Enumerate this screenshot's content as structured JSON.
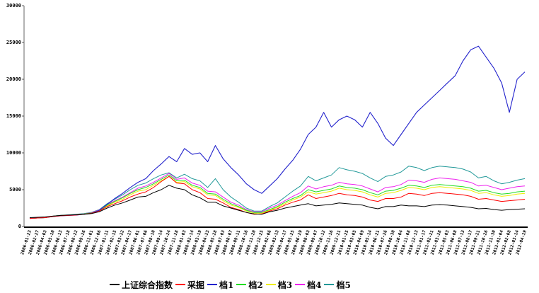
{
  "chart_data": {
    "type": "line",
    "title": "",
    "xlabel": "",
    "ylabel": "",
    "ylim": [
      0,
      30000
    ],
    "yticks": [
      "30000",
      "25000",
      "20000",
      "15000",
      "10000",
      "5000",
      "0"
    ],
    "ytick_values": [
      30000,
      25000,
      20000,
      15000,
      10000,
      5000,
      0
    ],
    "grid": false,
    "legend_placement": "bottom",
    "x": [
      "2006-01-23",
      "2006-02-27",
      "2006-04-03",
      "2006-05-10",
      "2006-06-13",
      "2006-07-18",
      "2006-08-22",
      "2006-09-26",
      "2006-11-01",
      "2006-12-06",
      "2007-01-11",
      "2007-02-15",
      "2007-03-22",
      "2007-04-27",
      "2007-06-01",
      "2007-07-06",
      "2007-08-10",
      "2007-09-14",
      "2007-10-24",
      "2007-11-28",
      "2008-01-03",
      "2008-02-14",
      "2008-03-19",
      "2008-04-23",
      "2008-05-28",
      "2008-07-03",
      "2008-08-07",
      "2008-09-11",
      "2008-10-16",
      "2008-11-20",
      "2008-12-25",
      "2009-02-06",
      "2009-03-13",
      "2009-04-17",
      "2009-05-25",
      "2009-06-29",
      "2009-08-03",
      "2009-09-07",
      "2009-10-12",
      "2009-11-16",
      "2009-12-21",
      "2010-01-25",
      "2010-03-05",
      "2010-04-09",
      "2010-05-14",
      "2010-06-21",
      "2010-07-26",
      "2010-08-30",
      "2010-10-04",
      "2010-11-08",
      "2010-12-13",
      "2011-01-17",
      "2011-02-21",
      "2011-03-28",
      "2011-05-03",
      "2011-06-08",
      "2011-07-13",
      "2011-08-17",
      "2011-09-21",
      "2011-10-26",
      "2011-11-30",
      "2012-01-04",
      "2012-02-08",
      "2012-03-14",
      "2012-04-19"
    ],
    "series": [
      {
        "name": "上证综合指数",
        "color": "#000000",
        "values": [
          1200,
          1250,
          1300,
          1400,
          1500,
          1550,
          1600,
          1650,
          1750,
          2000,
          2500,
          2900,
          3200,
          3600,
          4000,
          4100,
          4600,
          5000,
          5600,
          5200,
          5000,
          4300,
          3900,
          3300,
          3300,
          2800,
          2500,
          2200,
          1900,
          1700,
          1650,
          2000,
          2200,
          2500,
          2700,
          2900,
          3100,
          2800,
          2900,
          3000,
          3200,
          3100,
          3000,
          2900,
          2600,
          2400,
          2700,
          2700,
          2900,
          2800,
          2800,
          2700,
          2900,
          2950,
          2900,
          2800,
          2700,
          2600,
          2400,
          2450,
          2300,
          2200,
          2300,
          2350,
          2400
        ]
      },
      {
        "name": "采掘",
        "color": "#ff0000",
        "values": [
          1100,
          1150,
          1200,
          1350,
          1450,
          1500,
          1550,
          1650,
          1800,
          2100,
          2700,
          3100,
          3500,
          4000,
          4400,
          4700,
          5300,
          6100,
          6800,
          5900,
          5800,
          5000,
          4600,
          3800,
          3700,
          3200,
          2600,
          2300,
          1900,
          1650,
          1700,
          2100,
          2400,
          2900,
          3300,
          3600,
          4300,
          3800,
          4000,
          4200,
          4500,
          4300,
          4200,
          4000,
          3600,
          3400,
          3800,
          3800,
          4000,
          4500,
          4400,
          4200,
          4500,
          4600,
          4500,
          4400,
          4300,
          4100,
          3700,
          3800,
          3600,
          3400,
          3500,
          3600,
          3700
        ]
      },
      {
        "name": "档1",
        "color": "#2222cc",
        "values": [
          1100,
          1150,
          1200,
          1350,
          1450,
          1500,
          1550,
          1650,
          1800,
          2200,
          3000,
          3800,
          4500,
          5300,
          6000,
          6500,
          7600,
          8500,
          9500,
          8800,
          10600,
          9800,
          10000,
          8800,
          11000,
          9200,
          8000,
          7000,
          5800,
          5000,
          4500,
          5500,
          6500,
          7800,
          9000,
          10500,
          12500,
          13500,
          15500,
          13500,
          14500,
          15000,
          14500,
          13500,
          15500,
          14000,
          12000,
          11000,
          12500,
          14000,
          15500,
          16500,
          17500,
          18500,
          19500,
          20500,
          22500,
          24000,
          24500,
          23000,
          21500,
          19500,
          15500,
          20000,
          21000
        ]
      },
      {
        "name": "档2",
        "color": "#22dd22",
        "values": [
          1100,
          1150,
          1200,
          1400,
          1500,
          1550,
          1600,
          1700,
          1850,
          2200,
          2900,
          3400,
          3900,
          4500,
          5000,
          5300,
          5800,
          6400,
          7000,
          6200,
          6300,
          5600,
          5300,
          4500,
          4400,
          3700,
          3100,
          2700,
          2200,
          1900,
          1900,
          2300,
          2700,
          3300,
          3800,
          4200,
          5000,
          4700,
          4900,
          5100,
          5500,
          5300,
          5200,
          5000,
          4600,
          4300,
          4800,
          4900,
          5200,
          5600,
          5500,
          5300,
          5600,
          5700,
          5600,
          5500,
          5400,
          5200,
          4800,
          4900,
          4600,
          4400,
          4500,
          4700,
          4800
        ]
      },
      {
        "name": "档3",
        "color": "#eeee00",
        "values": [
          1100,
          1150,
          1200,
          1380,
          1480,
          1520,
          1580,
          1680,
          1820,
          2150,
          2800,
          3300,
          3700,
          4300,
          4800,
          5000,
          5600,
          6200,
          6800,
          6000,
          6100,
          5400,
          5100,
          4300,
          4200,
          3500,
          2900,
          2600,
          2100,
          1800,
          1800,
          2200,
          2600,
          3100,
          3600,
          4000,
          4700,
          4400,
          4600,
          4800,
          5200,
          5000,
          4900,
          4700,
          4300,
          4000,
          4500,
          4600,
          4900,
          5300,
          5200,
          5000,
          5300,
          5400,
          5300,
          5200,
          5100,
          4900,
          4500,
          4600,
          4300,
          4100,
          4200,
          4400,
          4500
        ]
      },
      {
        "name": "档4",
        "color": "#ee22ee",
        "values": [
          1100,
          1150,
          1200,
          1400,
          1500,
          1560,
          1620,
          1720,
          1880,
          2250,
          3000,
          3500,
          4000,
          4600,
          5200,
          5500,
          6000,
          6600,
          7200,
          6400,
          6600,
          5900,
          5600,
          4800,
          4700,
          4000,
          3300,
          2900,
          2300,
          2000,
          2000,
          2500,
          2900,
          3500,
          4100,
          4600,
          5500,
          5100,
          5400,
          5600,
          6000,
          5800,
          5700,
          5500,
          5100,
          4700,
          5300,
          5400,
          5700,
          6300,
          6200,
          6000,
          6400,
          6600,
          6500,
          6400,
          6200,
          6000,
          5500,
          5600,
          5300,
          5000,
          5200,
          5400,
          5500
        ]
      },
      {
        "name": "档5",
        "color": "#229999",
        "values": [
          1100,
          1150,
          1200,
          1400,
          1520,
          1580,
          1650,
          1750,
          1920,
          2300,
          3100,
          3700,
          4300,
          5000,
          5600,
          5900,
          6500,
          7000,
          7300,
          6600,
          7100,
          6500,
          6200,
          5300,
          6500,
          5000,
          4000,
          3300,
          2500,
          2100,
          2100,
          2700,
          3200,
          4000,
          4800,
          5500,
          6800,
          6200,
          6600,
          7000,
          8000,
          7700,
          7500,
          7200,
          6600,
          6100,
          6800,
          7000,
          7400,
          8200,
          8000,
          7600,
          8000,
          8200,
          8100,
          8000,
          7800,
          7400,
          6600,
          6800,
          6200,
          5800,
          6000,
          6300,
          6500
        ]
      }
    ]
  }
}
